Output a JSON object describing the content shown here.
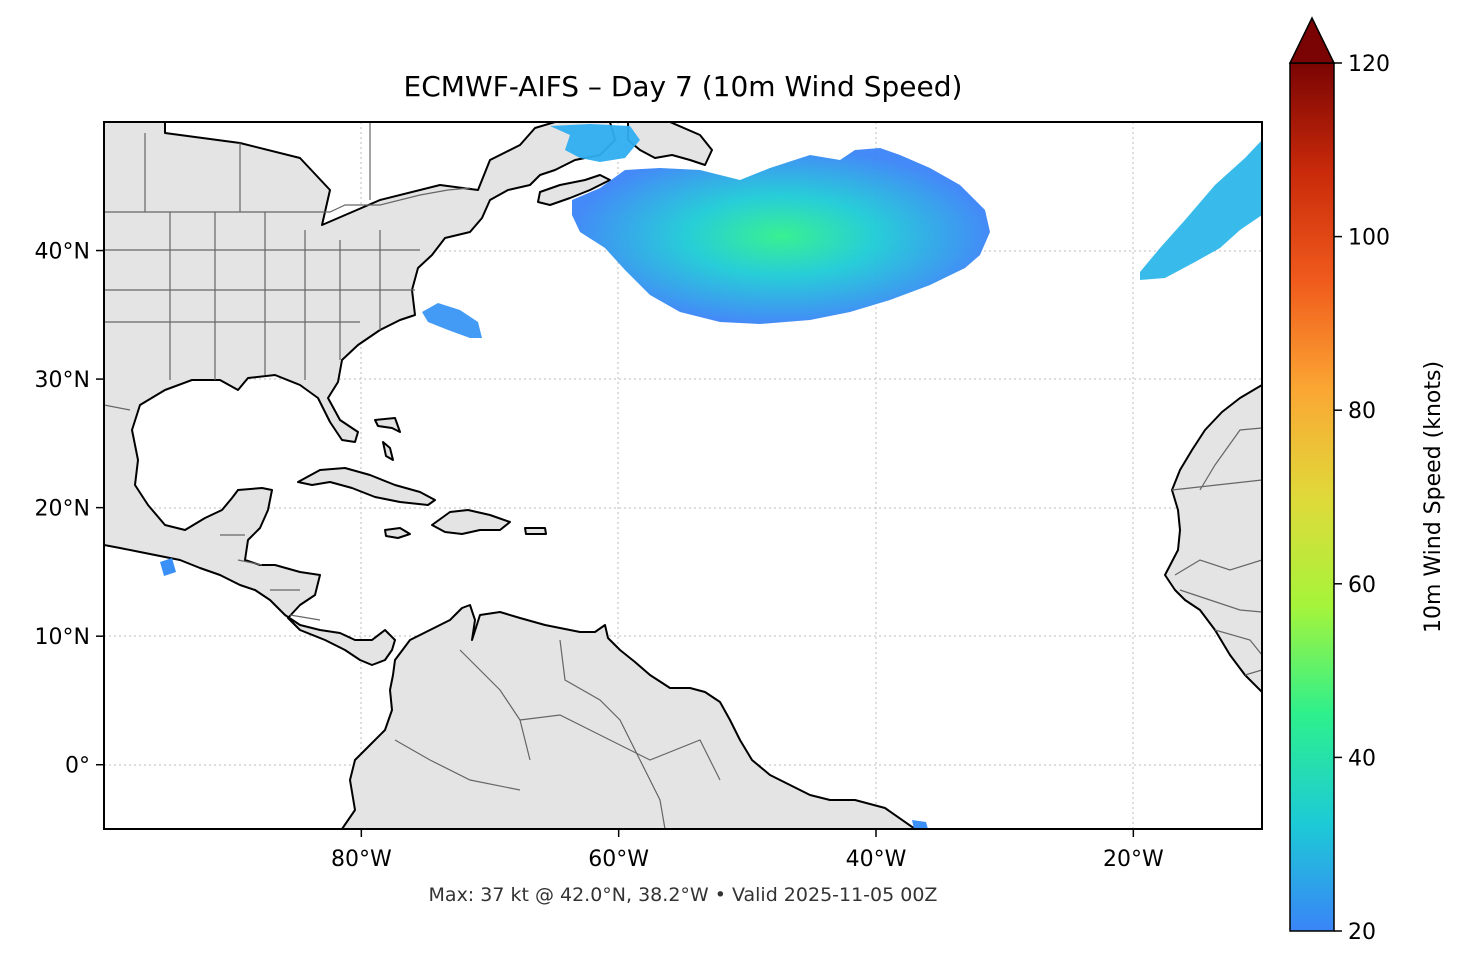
{
  "title": "ECMWF-AIFS – Day 7 (10m Wind Speed)",
  "footer": "Max: 37 kt @ 42.0°N, 38.2°W • Valid 2025-11-05 00Z",
  "map": {
    "extent": {
      "lon_min": -100,
      "lon_max": -10,
      "lat_min": -5,
      "lat_max": 50
    },
    "x_ticks": [
      {
        "lon": -80,
        "label": "80°W"
      },
      {
        "lon": -60,
        "label": "60°W"
      },
      {
        "lon": -40,
        "label": "40°W"
      },
      {
        "lon": -20,
        "label": "20°W"
      }
    ],
    "y_ticks": [
      {
        "lat": 40,
        "label": "40°N"
      },
      {
        "lat": 30,
        "label": "30°N"
      },
      {
        "lat": 20,
        "label": "20°N"
      },
      {
        "lat": 10,
        "label": "10°N"
      },
      {
        "lat": 0,
        "label": "0°"
      }
    ],
    "gridlines": true,
    "colors": {
      "land": "#e4e4e4",
      "ocean": "#ffffff",
      "coast": "#000000",
      "borders": "#666666"
    }
  },
  "colorbar": {
    "label": "10m Wind Speed (knots)",
    "min": 20,
    "max": 120,
    "extend": "max",
    "ticks": [
      {
        "value": 20,
        "label": "20"
      },
      {
        "value": 40,
        "label": "40"
      },
      {
        "value": 60,
        "label": "60"
      },
      {
        "value": 80,
        "label": "80"
      },
      {
        "value": 100,
        "label": "100"
      },
      {
        "value": 120,
        "label": "120"
      }
    ],
    "colormap": [
      "#3a84f7",
      "#1ccbd6",
      "#2ef08c",
      "#a6f43a",
      "#e0d93a",
      "#fba633",
      "#f05a1c",
      "#c92a0a",
      "#7a0403"
    ]
  },
  "chart_data": {
    "type": "heatmap",
    "variable": "10m Wind Speed",
    "units": "knots",
    "max_value": 37,
    "max_location": {
      "lat": 42.0,
      "lon": -38.2
    },
    "wind_regions": [
      {
        "center_lat": 42.0,
        "center_lon": -42,
        "peak_kt": 37
      },
      {
        "center_lat": 48.0,
        "center_lon": -60,
        "peak_kt": 28
      },
      {
        "center_lat": 43.5,
        "center_lon": -15,
        "peak_kt": 26
      },
      {
        "center_lat": 35.0,
        "center_lon": -72,
        "peak_kt": 24
      },
      {
        "center_lat": 15.5,
        "center_lon": -95.5,
        "peak_kt": 22
      },
      {
        "center_lat": -4.7,
        "center_lon": -36.5,
        "peak_kt": 21
      }
    ]
  }
}
